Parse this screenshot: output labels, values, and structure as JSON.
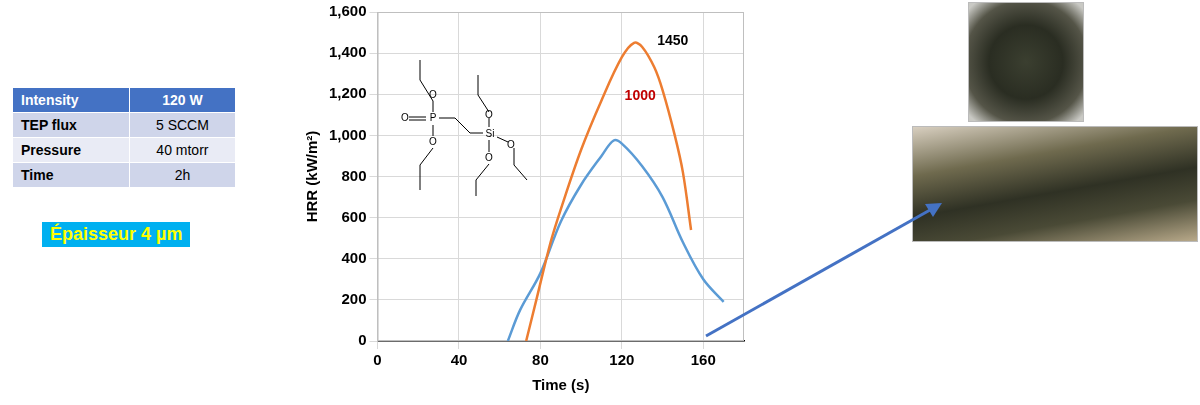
{
  "chart_data": {
    "type": "line",
    "x_label": "Time (s)",
    "y_label": "HRR (kW/m²)",
    "xlim": [
      0,
      180
    ],
    "xticks": [
      0,
      40,
      80,
      120,
      160
    ],
    "ylim": [
      0,
      1600
    ],
    "yticks": [
      0,
      200,
      400,
      600,
      800,
      1000,
      1200,
      1400,
      1600
    ],
    "grid": true,
    "series": [
      {
        "color": "#ed7d31",
        "x": [
          73,
          78,
          85,
          90,
          100,
          110,
          120,
          126,
          130,
          136,
          140,
          146,
          150,
          154
        ],
        "values": [
          0,
          200,
          480,
          640,
          930,
          1170,
          1380,
          1450,
          1430,
          1330,
          1220,
          1000,
          820,
          540
        ]
      },
      {
        "color": "#5b9bd5",
        "x": [
          64,
          70,
          80,
          90,
          100,
          110,
          116,
          120,
          130,
          140,
          150,
          160,
          170
        ],
        "values": [
          0,
          150,
          330,
          580,
          760,
          900,
          975,
          960,
          850,
          700,
          480,
          300,
          190
        ]
      }
    ],
    "annotations": [
      {
        "text": "1450",
        "x": 145,
        "y": 1460,
        "color": "#000000"
      },
      {
        "text": "1000",
        "x": 129,
        "y": 1190,
        "color": "#c00000"
      }
    ]
  },
  "table": {
    "rows": [
      [
        "Intensity",
        "120 W"
      ],
      [
        "TEP flux",
        "5 SCCM"
      ],
      [
        "Pressure",
        "40 mtorr"
      ],
      [
        "Time",
        "2h"
      ]
    ]
  },
  "caption": "Épaisseur 4 µm",
  "molecule": {
    "atoms": [
      "O",
      "O",
      "O",
      "P",
      "Si",
      "O",
      "O",
      "O"
    ]
  }
}
